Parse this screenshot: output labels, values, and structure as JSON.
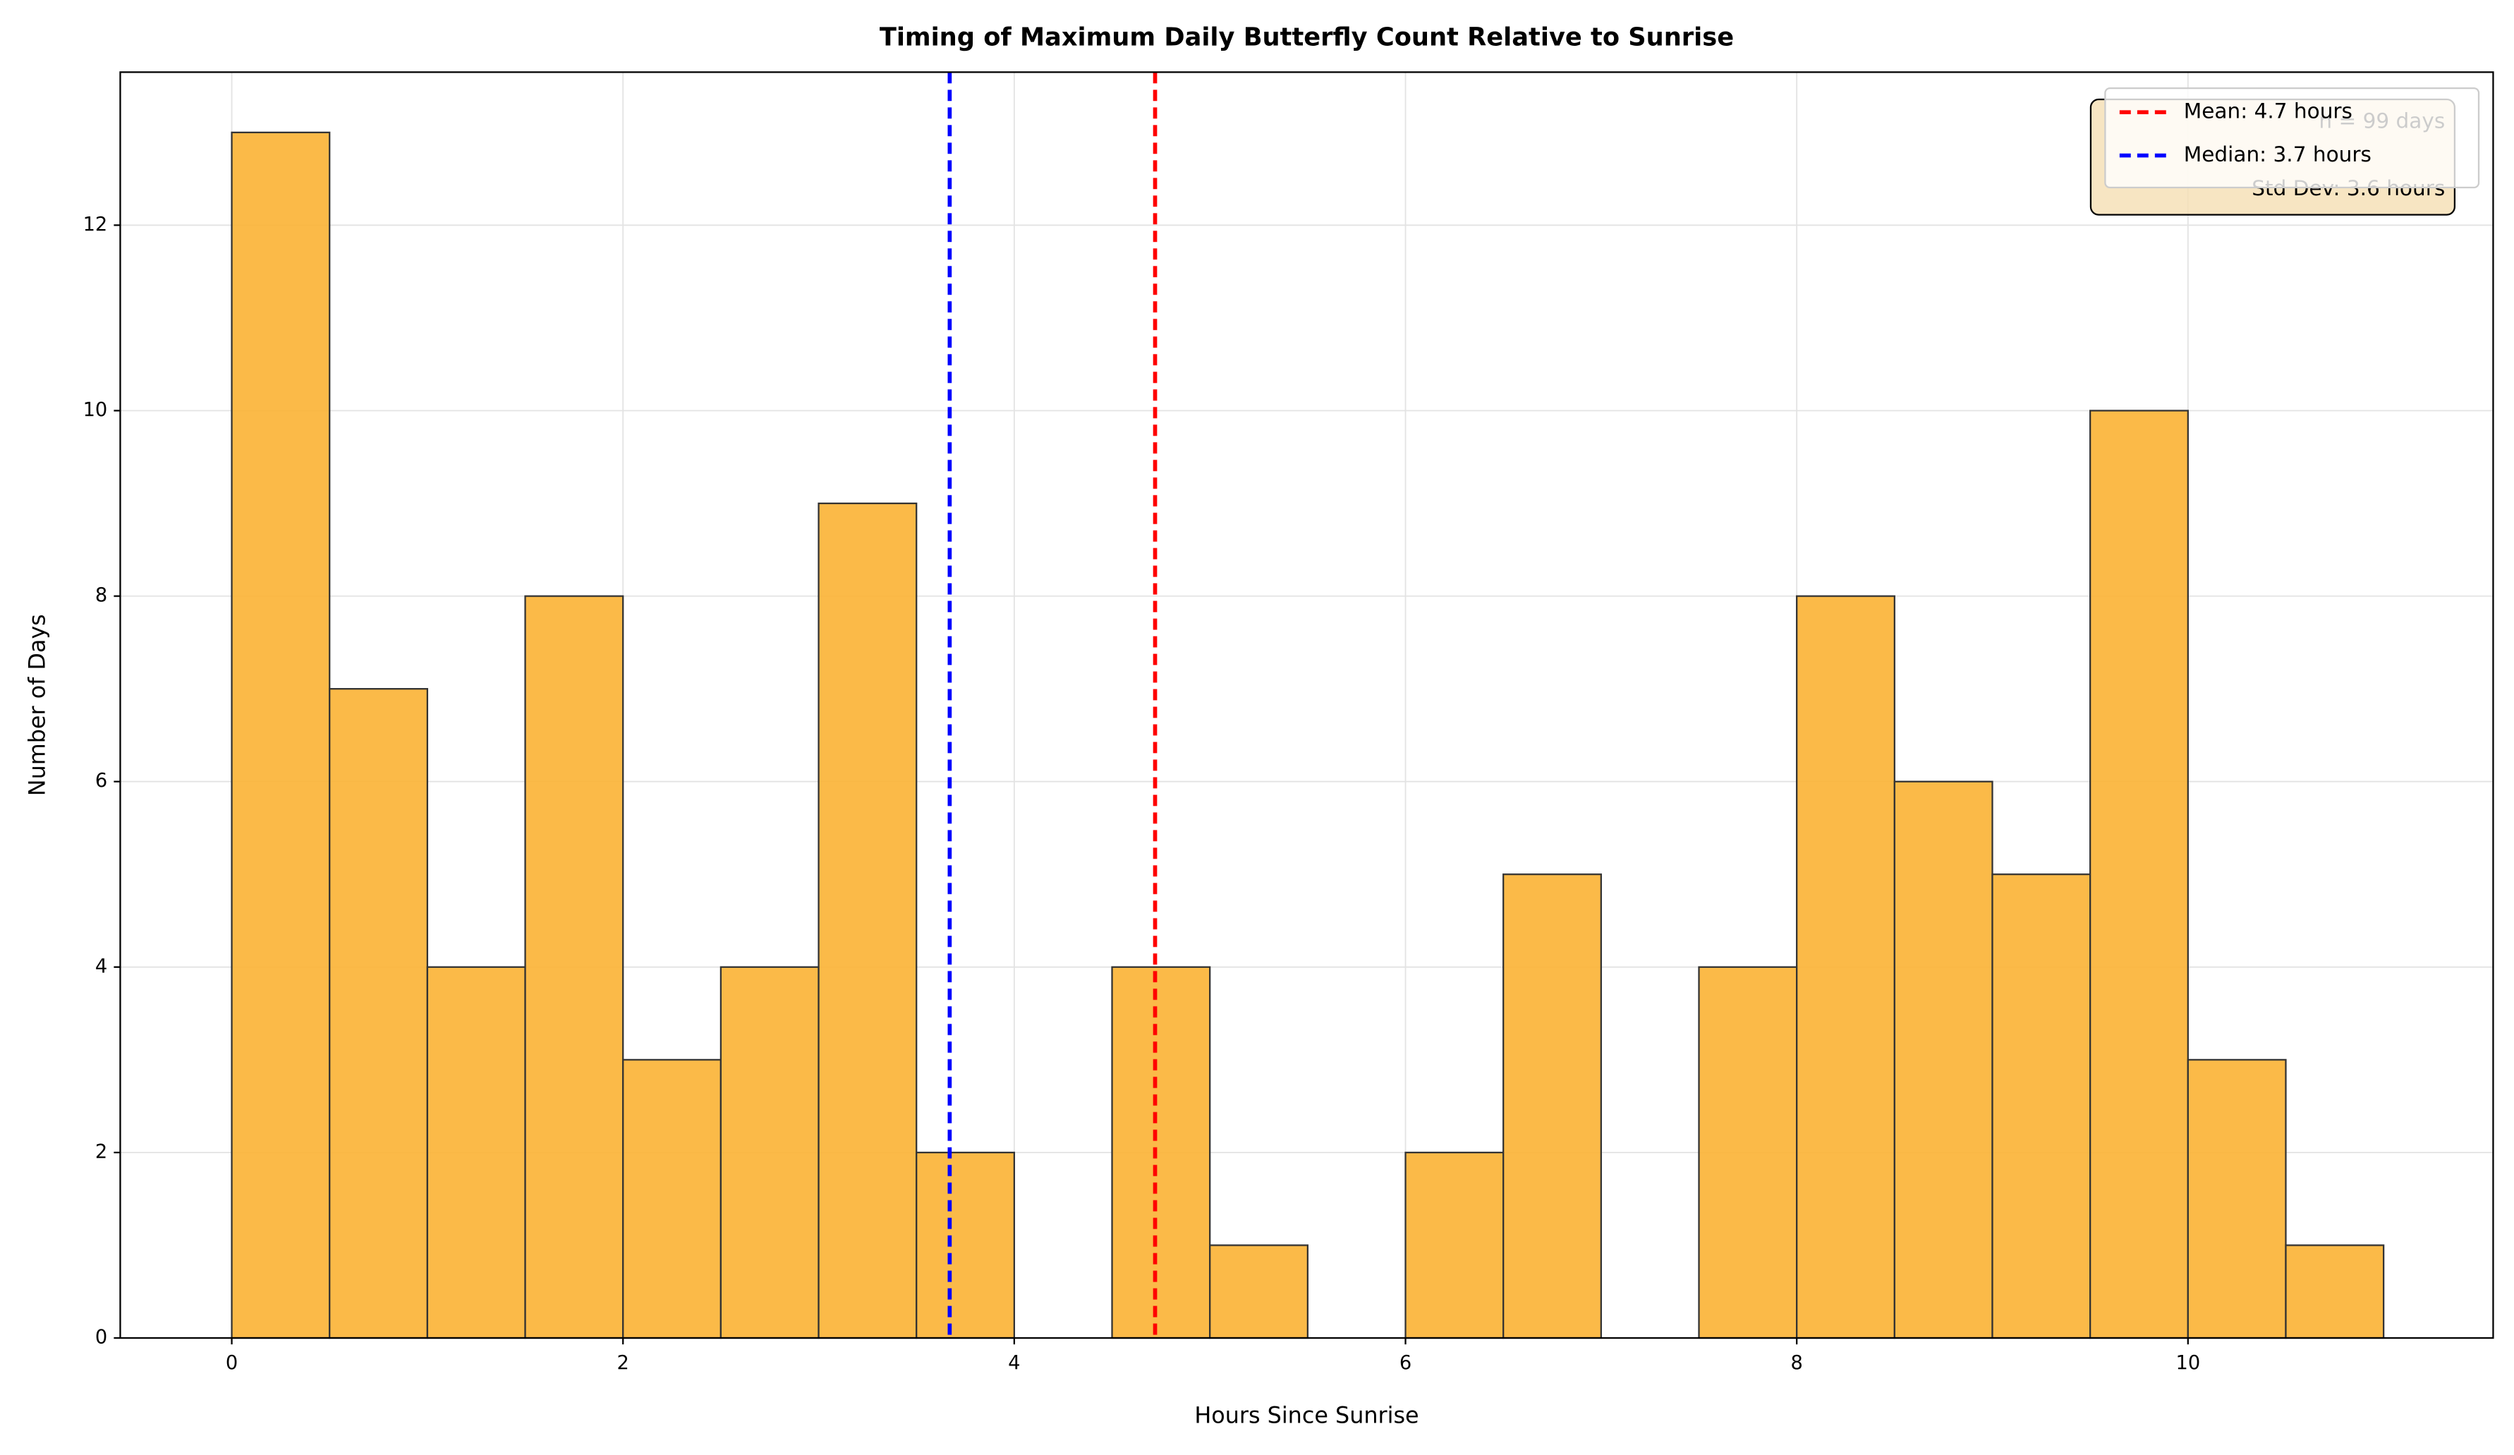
{
  "chart_data": {
    "type": "histogram",
    "title": "Timing of Maximum Daily Butterfly Count Relative to Sunrise",
    "x_label": "Hours Since Sunrise",
    "y_label": "Number of Days",
    "bins": [
      0,
      0.5,
      1,
      1.5,
      2,
      2.5,
      3,
      3.5,
      4,
      4.5,
      5,
      5.5,
      6,
      6.5,
      7,
      7.5,
      8,
      8.5,
      9,
      9.5,
      10,
      10.5,
      11
    ],
    "values": [
      13,
      7,
      4,
      8,
      3,
      4,
      9,
      2,
      0,
      4,
      1,
      0,
      2,
      5,
      0,
      4,
      8,
      6,
      5,
      10,
      3,
      1
    ],
    "color": "#fbb234",
    "xlim": [
      -0.57,
      11.56
    ],
    "ylim": [
      0,
      13.65
    ],
    "xticks": [
      0,
      2,
      4,
      6,
      8,
      10
    ],
    "yticks": [
      0,
      2,
      4,
      6,
      8,
      10,
      12
    ],
    "grid": true,
    "vlines": [
      {
        "name": "Mean: 4.7 hours",
        "value": 4.72,
        "color": "#ff0000"
      },
      {
        "name": "Median: 3.7 hours",
        "value": 3.67,
        "color": "#0000ff"
      }
    ],
    "legend": "upper right",
    "stats_box": [
      "n = 99 days",
      "Std Dev: 3.6 hours"
    ]
  }
}
